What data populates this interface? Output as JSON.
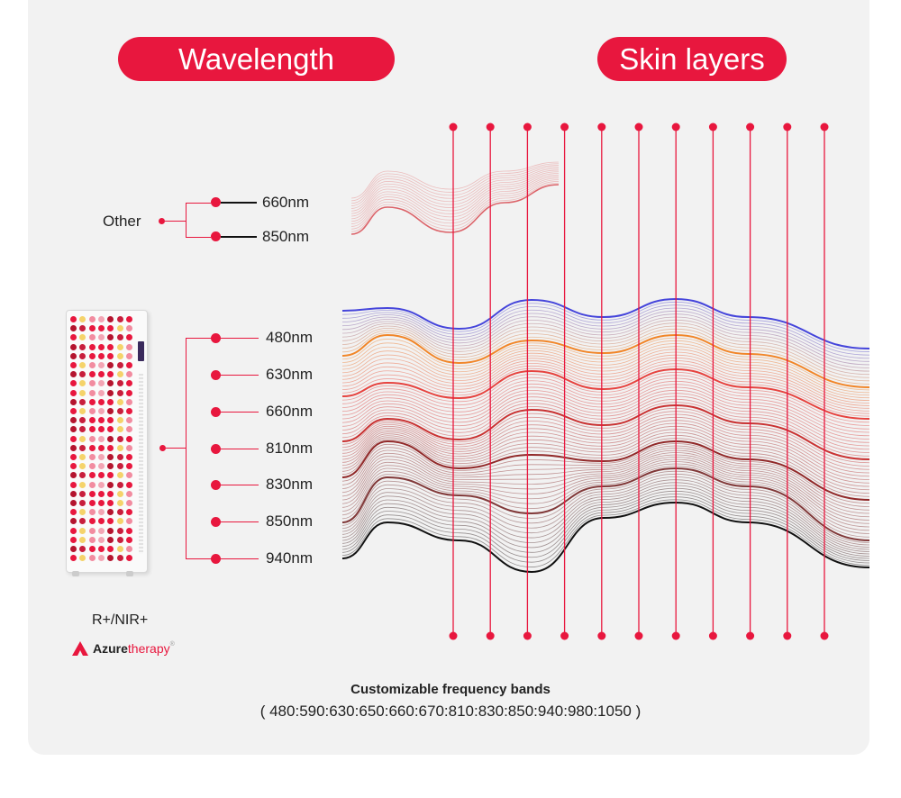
{
  "headers": {
    "wavelength": "Wavelength",
    "skin_layers": "Skin layers"
  },
  "other_group": {
    "label": "Other",
    "items": [
      "660nm",
      "850nm"
    ]
  },
  "main_group": {
    "items": [
      "480nm",
      "630nm",
      "660nm",
      "810nm",
      "830nm",
      "850nm",
      "940nm"
    ]
  },
  "device": {
    "caption": "R+/NIR+"
  },
  "brand": {
    "name_part1": "Azure",
    "name_part2": "therapy",
    "mark": "®"
  },
  "footer": {
    "title": "Customizable frequency bands",
    "bands": "( 480:590:630:650:660:670:810:830:850:940:980:1050 )"
  },
  "colors": {
    "accent": "#e8173e",
    "band_480": "#3b3bd9",
    "band_630": "#f07f1e",
    "band_660": "#e53935",
    "band_810": "#c62828",
    "band_830": "#8b1e1e",
    "band_850": "#7a2e2e",
    "band_940": "#111111"
  },
  "skin_layer_markers": 11
}
